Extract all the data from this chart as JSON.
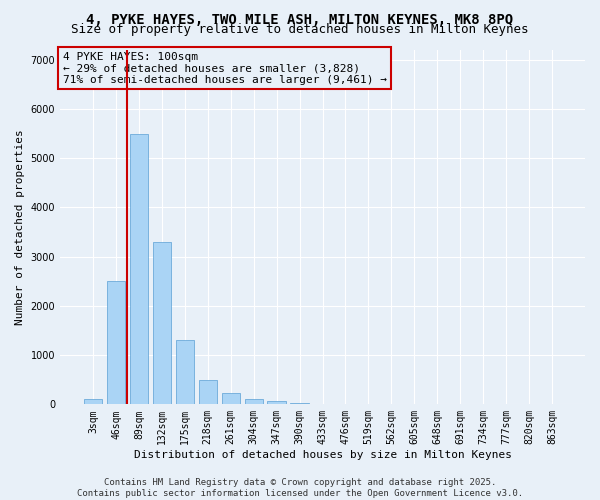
{
  "title": "4, PYKE HAYES, TWO MILE ASH, MILTON KEYNES, MK8 8PQ",
  "subtitle": "Size of property relative to detached houses in Milton Keynes",
  "xlabel": "Distribution of detached houses by size in Milton Keynes",
  "ylabel": "Number of detached properties",
  "categories": [
    "3sqm",
    "46sqm",
    "89sqm",
    "132sqm",
    "175sqm",
    "218sqm",
    "261sqm",
    "304sqm",
    "347sqm",
    "390sqm",
    "433sqm",
    "476sqm",
    "519sqm",
    "562sqm",
    "605sqm",
    "648sqm",
    "691sqm",
    "734sqm",
    "777sqm",
    "820sqm",
    "863sqm"
  ],
  "values": [
    100,
    2500,
    5500,
    3300,
    1300,
    500,
    230,
    100,
    70,
    30,
    10,
    5,
    2,
    2,
    1,
    1,
    0,
    0,
    0,
    0,
    0
  ],
  "bar_color": "#aad4f5",
  "bar_edgecolor": "#5a9fd4",
  "vline_x": 1.5,
  "vline_color": "#cc0000",
  "ylim": [
    0,
    7200
  ],
  "yticks": [
    0,
    1000,
    2000,
    3000,
    4000,
    5000,
    6000,
    7000
  ],
  "annotation_text": "4 PYKE HAYES: 100sqm\n← 29% of detached houses are smaller (3,828)\n71% of semi-detached houses are larger (9,461) →",
  "annotation_box_color": "#cc0000",
  "bg_color": "#e8f0f8",
  "grid_color": "#ffffff",
  "footer": "Contains HM Land Registry data © Crown copyright and database right 2025.\nContains public sector information licensed under the Open Government Licence v3.0.",
  "title_fontsize": 10,
  "subtitle_fontsize": 9,
  "xlabel_fontsize": 8,
  "ylabel_fontsize": 8,
  "tick_fontsize": 7,
  "annotation_fontsize": 8,
  "footer_fontsize": 6.5
}
